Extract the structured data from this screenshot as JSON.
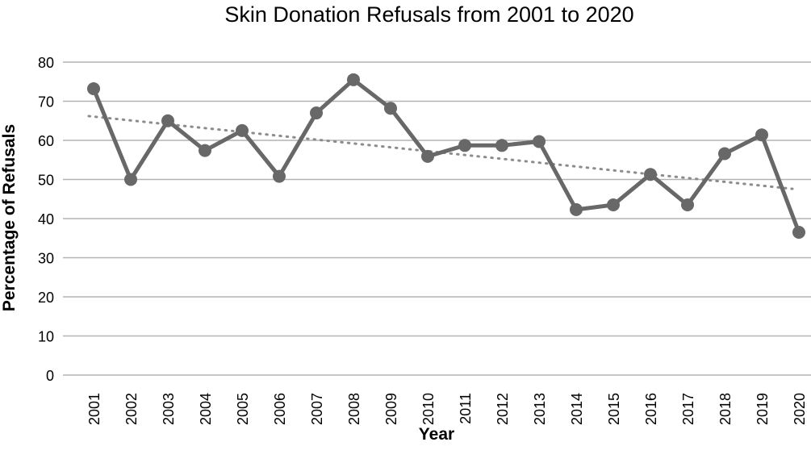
{
  "chart_data": {
    "type": "line",
    "title": "Skin Donation Refusals from 2001 to 2020",
    "xlabel": "Year",
    "ylabel": "Percentage of Refusals",
    "categories": [
      "2001",
      "2002",
      "2003",
      "2004",
      "2005",
      "2006",
      "2007",
      "2008",
      "2009",
      "2010",
      "2011",
      "2012",
      "2013",
      "2014",
      "2015",
      "2016",
      "2017",
      "2018",
      "2019",
      "2020"
    ],
    "series": [
      {
        "values": [
          73.2,
          50.0,
          65.0,
          57.4,
          62.5,
          50.8,
          67.0,
          75.5,
          68.2,
          55.9,
          58.7,
          58.7,
          59.7,
          42.3,
          43.5,
          51.3,
          43.5,
          56.6,
          61.4,
          36.5
        ]
      }
    ],
    "trendline": {
      "type": "linear",
      "style": "dotted",
      "start": 66.2,
      "end": 47.6
    },
    "ylim": [
      0,
      80
    ],
    "yticks": [
      "0",
      "10",
      "20",
      "30",
      "40",
      "50",
      "60",
      "70",
      "80"
    ],
    "grid": true,
    "legend": "none",
    "colors": {
      "line": "#686868",
      "grid": "#b3b3b3",
      "trend": "#8c8c8c"
    }
  }
}
